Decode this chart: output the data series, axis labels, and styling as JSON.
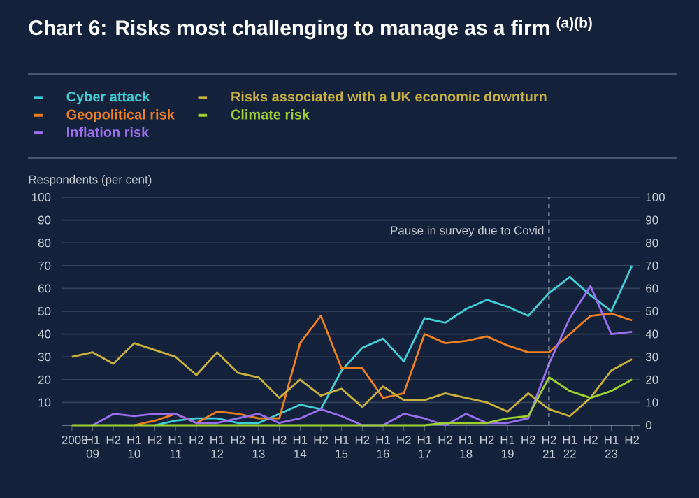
{
  "chart_data": {
    "type": "line",
    "title": "Chart 6: Risks most challenging to manage as a firm $^{(a)(b)}$",
    "ylabel": "Respondents (per cent)",
    "categories": [
      "2008",
      "H1 09",
      "H2",
      "H1 10",
      "H2",
      "H1 11",
      "H2",
      "H1 12",
      "H2",
      "H1 13",
      "H2",
      "H1 14",
      "H2",
      "H1 15",
      "H2",
      "H1 16",
      "H2",
      "H1 17",
      "H2",
      "H1 18",
      "H2",
      "H1 19",
      "H2",
      "H2 21",
      "H1 22",
      "H2",
      "H1 23",
      "H2"
    ],
    "series": [
      {
        "name": "Cyber attack",
        "color": "#3ecfd6",
        "values": [
          null,
          null,
          null,
          null,
          0,
          2,
          3,
          3,
          1,
          1,
          5,
          9,
          7,
          24,
          34,
          38,
          28,
          47,
          45,
          51,
          55,
          52,
          48,
          58,
          65,
          57,
          50,
          70
        ]
      },
      {
        "name": "Geopolitical risk",
        "color": "#f07f1e",
        "values": [
          null,
          null,
          null,
          0,
          2,
          5,
          1,
          6,
          5,
          3,
          3,
          36,
          48,
          25,
          25,
          12,
          14,
          40,
          36,
          37,
          39,
          35,
          32,
          32,
          40,
          48,
          49,
          46
        ]
      },
      {
        "name": "Inflation risk",
        "color": "#9b6ff0",
        "values": [
          null,
          0,
          5,
          4,
          5,
          5,
          1,
          1,
          3,
          5,
          1,
          3,
          7,
          4,
          0,
          0,
          5,
          3,
          0,
          5,
          1,
          1,
          3,
          27,
          47,
          61,
          40,
          41
        ]
      },
      {
        "name": "Risks associated with a UK economic downturn",
        "color": "#c9b03c",
        "values": [
          30,
          32,
          27,
          36,
          33,
          30,
          22,
          32,
          23,
          21,
          12,
          20,
          13,
          16,
          8,
          17,
          11,
          11,
          14,
          12,
          10,
          6,
          14,
          7,
          4,
          12,
          24,
          29
        ]
      },
      {
        "name": "Climate risk",
        "color": "#9ed12f",
        "values": [
          0,
          0,
          0,
          0,
          0,
          0,
          0,
          0,
          0,
          0,
          0,
          0,
          0,
          0,
          0,
          0,
          0,
          0,
          1,
          1,
          1,
          3,
          4,
          21,
          15,
          12,
          15,
          20
        ]
      }
    ],
    "ylim": [
      0,
      100
    ],
    "yticks": [
      {
        "value": 0,
        "label": null
      },
      10,
      20,
      30,
      40,
      50,
      60,
      70,
      80,
      90,
      100
    ],
    "y2lim": [
      0,
      100
    ],
    "y2ticks": [
      0,
      10,
      20,
      30,
      40,
      50,
      60,
      70,
      80,
      90,
      100
    ],
    "ref_lines": [
      {
        "axis": "x",
        "value": "H2 21",
        "label": "Pause in survey due to Covid",
        "color": "#c8cdd6",
        "line_style": "dashed"
      }
    ],
    "grid": "y",
    "legend": "top",
    "marker": "none",
    "line_style": "solid"
  }
}
